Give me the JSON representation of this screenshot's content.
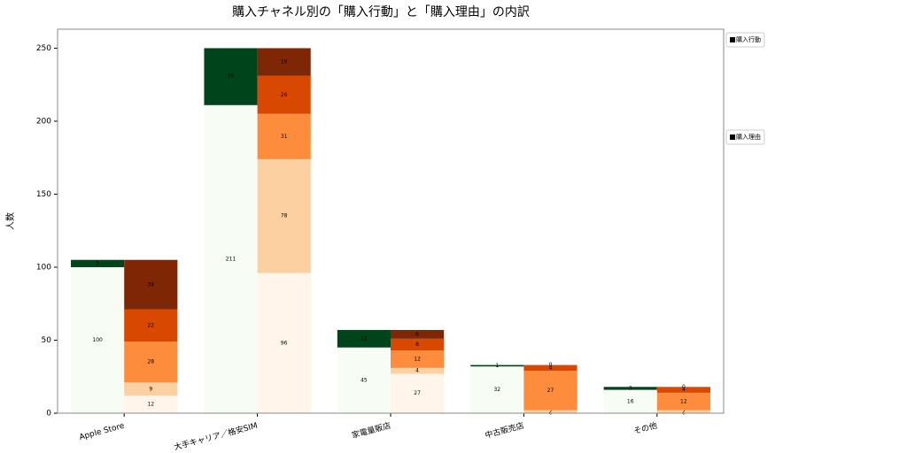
{
  "chart_data": {
    "type": "grouped-stacked-bar",
    "title": "購入チャネル別の「購入行動」と「購入理由」の内訳",
    "y_label": "人数",
    "categories": [
      "Apple Store",
      "大手キャリア／格安SIM",
      "家電量販店",
      "中古販売店",
      "その他"
    ],
    "ylim": [
      0,
      263
    ],
    "yticks": [
      0,
      50,
      100,
      150,
      200,
      250
    ],
    "groups": [
      {
        "name": "購入行動",
        "series": [
          {
            "color": "#f7fcf5",
            "values": [
              100,
              211,
              45,
              32,
              16
            ]
          },
          {
            "color": "#00441b",
            "values": [
              5,
              39,
              12,
              1,
              2
            ]
          }
        ]
      },
      {
        "name": "購入理由",
        "series": [
          {
            "color": "#fff5eb",
            "values": [
              12,
              96,
              27,
              0,
              0
            ]
          },
          {
            "color": "#fdd0a2",
            "values": [
              9,
              78,
              4,
              2,
              2
            ]
          },
          {
            "color": "#fd8d3c",
            "values": [
              28,
              31,
              12,
              27,
              12
            ]
          },
          {
            "color": "#d94801",
            "values": [
              22,
              26,
              8,
              4,
              4
            ]
          },
          {
            "color": "#7f2704",
            "values": [
              34,
              19,
              6,
              0,
              0
            ]
          }
        ]
      }
    ]
  }
}
